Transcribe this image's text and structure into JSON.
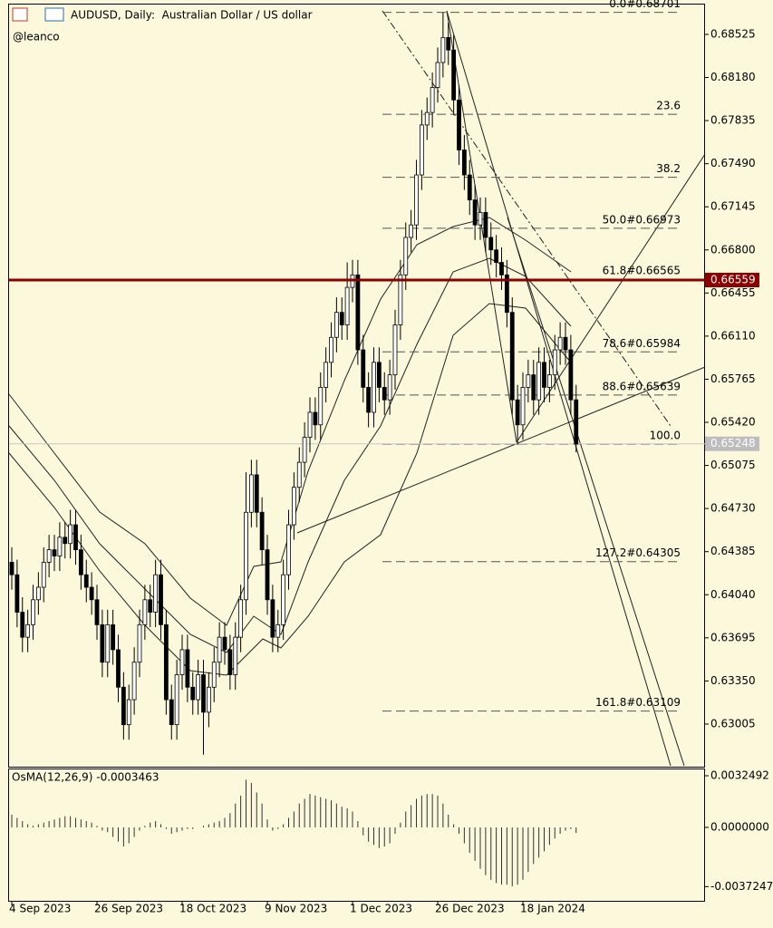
{
  "chart_data": {
    "type": "candlestick",
    "title": "AUDUSD, Daily:  Australian Dollar / US dollar",
    "subtitle": "@leanco",
    "bull_color": "#ffffff",
    "bear_color": "#000000",
    "categories": [
      "4 Sep 2023",
      null,
      null,
      null,
      null,
      null,
      null,
      null,
      null,
      null,
      null,
      null,
      null,
      null,
      null,
      null,
      "26 Sep 2023",
      null,
      null,
      null,
      null,
      null,
      null,
      null,
      null,
      null,
      null,
      null,
      null,
      null,
      null,
      null,
      "18 Oct 2023",
      null,
      null,
      null,
      null,
      null,
      null,
      null,
      null,
      null,
      null,
      null,
      null,
      null,
      null,
      null,
      "9 Nov 2023",
      null,
      null,
      null,
      null,
      null,
      null,
      null,
      null,
      null,
      null,
      null,
      null,
      null,
      null,
      null,
      "1 Dec 2023",
      null,
      null,
      null,
      null,
      null,
      null,
      null,
      null,
      null,
      null,
      null,
      null,
      null,
      null,
      null,
      "26 Dec 2023",
      null,
      null,
      null,
      null,
      null,
      null,
      null,
      null,
      null,
      null,
      null,
      null,
      null,
      null,
      null,
      "18 Jan 2024",
      null,
      null,
      null,
      null,
      null,
      null,
      null,
      null,
      null,
      null
    ],
    "candles": [
      [
        0.643,
        0.6442,
        0.6408,
        0.642
      ],
      [
        0.642,
        0.6432,
        0.6378,
        0.639
      ],
      [
        0.639,
        0.6402,
        0.6358,
        0.637
      ],
      [
        0.637,
        0.6392,
        0.6358,
        0.638
      ],
      [
        0.638,
        0.6412,
        0.6368,
        0.64
      ],
      [
        0.64,
        0.6422,
        0.6388,
        0.641
      ],
      [
        0.641,
        0.6442,
        0.6398,
        0.643
      ],
      [
        0.643,
        0.6452,
        0.6418,
        0.644
      ],
      [
        0.644,
        0.6452,
        0.6423,
        0.6435
      ],
      [
        0.6435,
        0.6462,
        0.6423,
        0.645
      ],
      [
        0.645,
        0.6462,
        0.6433,
        0.6445
      ],
      [
        0.6445,
        0.6472,
        0.6433,
        0.646
      ],
      [
        0.646,
        0.6472,
        0.6428,
        0.644
      ],
      [
        0.644,
        0.6452,
        0.6408,
        0.642
      ],
      [
        0.642,
        0.6432,
        0.6398,
        0.641
      ],
      [
        0.641,
        0.6422,
        0.6388,
        0.64
      ],
      [
        0.64,
        0.6412,
        0.6368,
        0.638
      ],
      [
        0.638,
        0.6392,
        0.6338,
        0.635
      ],
      [
        0.635,
        0.6392,
        0.6338,
        0.638
      ],
      [
        0.638,
        0.6392,
        0.6348,
        0.636
      ],
      [
        0.636,
        0.6372,
        0.6318,
        0.633
      ],
      [
        0.633,
        0.6342,
        0.6288,
        0.63
      ],
      [
        0.63,
        0.6332,
        0.6288,
        0.632
      ],
      [
        0.632,
        0.6362,
        0.6308,
        0.635
      ],
      [
        0.635,
        0.6392,
        0.6338,
        0.638
      ],
      [
        0.638,
        0.6412,
        0.6368,
        0.64
      ],
      [
        0.64,
        0.6412,
        0.6378,
        0.639
      ],
      [
        0.639,
        0.6432,
        0.6378,
        0.642
      ],
      [
        0.642,
        0.6432,
        0.6368,
        0.638
      ],
      [
        0.638,
        0.6392,
        0.6308,
        0.632
      ],
      [
        0.632,
        0.6332,
        0.6288,
        0.63
      ],
      [
        0.63,
        0.6352,
        0.6288,
        0.634
      ],
      [
        0.634,
        0.6372,
        0.6328,
        0.636
      ],
      [
        0.636,
        0.6372,
        0.6318,
        0.633
      ],
      [
        0.633,
        0.6342,
        0.6308,
        0.632
      ],
      [
        0.632,
        0.6352,
        0.6308,
        0.634
      ],
      [
        0.634,
        0.6352,
        0.6276,
        0.631
      ],
      [
        0.631,
        0.6342,
        0.6298,
        0.633
      ],
      [
        0.633,
        0.6362,
        0.6318,
        0.635
      ],
      [
        0.635,
        0.6382,
        0.6338,
        0.637
      ],
      [
        0.637,
        0.6382,
        0.6348,
        0.636
      ],
      [
        0.636,
        0.6372,
        0.6328,
        0.634
      ],
      [
        0.634,
        0.6382,
        0.6328,
        0.637
      ],
      [
        0.637,
        0.6412,
        0.6358,
        0.64
      ],
      [
        0.64,
        0.6502,
        0.6388,
        0.647
      ],
      [
        0.647,
        0.6512,
        0.6458,
        0.65
      ],
      [
        0.65,
        0.6512,
        0.6458,
        0.647
      ],
      [
        0.647,
        0.6482,
        0.6428,
        0.644
      ],
      [
        0.644,
        0.6452,
        0.6388,
        0.64
      ],
      [
        0.64,
        0.6412,
        0.6358,
        0.637
      ],
      [
        0.637,
        0.6392,
        0.6358,
        0.638
      ],
      [
        0.638,
        0.6432,
        0.6368,
        0.642
      ],
      [
        0.642,
        0.6472,
        0.6408,
        0.646
      ],
      [
        0.646,
        0.6502,
        0.6448,
        0.649
      ],
      [
        0.649,
        0.6522,
        0.6478,
        0.651
      ],
      [
        0.651,
        0.6542,
        0.6498,
        0.653
      ],
      [
        0.653,
        0.6562,
        0.6518,
        0.655
      ],
      [
        0.655,
        0.6562,
        0.6528,
        0.654
      ],
      [
        0.654,
        0.6582,
        0.6528,
        0.657
      ],
      [
        0.657,
        0.6602,
        0.6558,
        0.659
      ],
      [
        0.659,
        0.6622,
        0.6578,
        0.661
      ],
      [
        0.661,
        0.6642,
        0.6598,
        0.663
      ],
      [
        0.663,
        0.6642,
        0.6608,
        0.662
      ],
      [
        0.662,
        0.667,
        0.6608,
        0.665
      ],
      [
        0.665,
        0.6672,
        0.6638,
        0.666
      ],
      [
        0.666,
        0.6672,
        0.6588,
        0.66
      ],
      [
        0.66,
        0.6612,
        0.6558,
        0.657
      ],
      [
        0.657,
        0.6582,
        0.6538,
        0.655
      ],
      [
        0.655,
        0.6602,
        0.6538,
        0.659
      ],
      [
        0.659,
        0.6602,
        0.6558,
        0.657
      ],
      [
        0.657,
        0.6582,
        0.6548,
        0.656
      ],
      [
        0.656,
        0.6592,
        0.6548,
        0.658
      ],
      [
        0.658,
        0.6632,
        0.6568,
        0.662
      ],
      [
        0.662,
        0.6672,
        0.6608,
        0.666
      ],
      [
        0.666,
        0.6702,
        0.6648,
        0.669
      ],
      [
        0.669,
        0.6712,
        0.6678,
        0.67
      ],
      [
        0.67,
        0.6752,
        0.6688,
        0.674
      ],
      [
        0.674,
        0.6792,
        0.6728,
        0.678
      ],
      [
        0.678,
        0.6802,
        0.6768,
        0.679
      ],
      [
        0.679,
        0.6822,
        0.6778,
        0.681
      ],
      [
        0.681,
        0.6842,
        0.6798,
        0.683
      ],
      [
        0.683,
        0.687,
        0.6818,
        0.685
      ],
      [
        0.685,
        0.6862,
        0.6828,
        0.684
      ],
      [
        0.684,
        0.6852,
        0.6788,
        0.68
      ],
      [
        0.68,
        0.6812,
        0.6748,
        0.676
      ],
      [
        0.676,
        0.6772,
        0.6728,
        0.674
      ],
      [
        0.674,
        0.6752,
        0.6708,
        0.672
      ],
      [
        0.672,
        0.6732,
        0.6688,
        0.67
      ],
      [
        0.67,
        0.6722,
        0.6688,
        0.671
      ],
      [
        0.671,
        0.6722,
        0.6678,
        0.669
      ],
      [
        0.669,
        0.6702,
        0.6668,
        0.668
      ],
      [
        0.668,
        0.6692,
        0.6658,
        0.667
      ],
      [
        0.667,
        0.6682,
        0.6648,
        0.666
      ],
      [
        0.666,
        0.6672,
        0.6618,
        0.663
      ],
      [
        0.663,
        0.6642,
        0.6548,
        0.656
      ],
      [
        0.656,
        0.6572,
        0.6524,
        0.654
      ],
      [
        0.654,
        0.6582,
        0.6528,
        0.657
      ],
      [
        0.657,
        0.6592,
        0.6558,
        0.658
      ],
      [
        0.658,
        0.6592,
        0.6548,
        0.656
      ],
      [
        0.656,
        0.6602,
        0.6548,
        0.659
      ],
      [
        0.659,
        0.6602,
        0.6558,
        0.657
      ],
      [
        0.657,
        0.6592,
        0.6558,
        0.658
      ],
      [
        0.658,
        0.6612,
        0.6568,
        0.66
      ],
      [
        0.66,
        0.6622,
        0.6588,
        0.661
      ],
      [
        0.661,
        0.6622,
        0.6588,
        0.66
      ],
      [
        0.66,
        0.6612,
        0.6548,
        0.656
      ],
      [
        0.656,
        0.6572,
        0.6518,
        0.65248
      ]
    ],
    "ylim": [
      0.62671,
      0.68764
    ],
    "yticks": [
      0.68525,
      {
        "value": 0.6818,
        "label": "0.68180"
      },
      0.67835,
      {
        "value": 0.6749,
        "label": "0.67490"
      },
      0.67145,
      {
        "value": 0.668,
        "label": "0.66800"
      },
      0.66455,
      {
        "value": 0.6611,
        "label": "0.66110"
      },
      0.65765,
      {
        "value": 0.6542,
        "label": "0.65420"
      },
      0.65075,
      {
        "value": 0.6473,
        "label": "0.64730"
      },
      0.64385,
      {
        "value": 0.6404,
        "label": "0.64040"
      },
      0.63695,
      {
        "value": 0.6335,
        "label": "0.63350"
      },
      0.63005
    ],
    "price_line": 0.66559,
    "price_line_color": "#8b0000",
    "current_price": 0.65248,
    "fib_levels": [
      {
        "label": "0.0#0.68701",
        "value": 0.68701
      },
      {
        "label": "23.6",
        "value": 0.67885
      },
      {
        "label": "38.2",
        "value": 0.67381
      },
      {
        "label": "50.0#0.66973",
        "value": 0.66973
      },
      {
        "label": "61.8#0.66565",
        "value": 0.66565
      },
      {
        "label": "78.6#0.65984",
        "value": 0.65984
      },
      {
        "label": "88.6#0.65639",
        "value": 0.65639
      },
      {
        "label": "100.0",
        "value": 0.65245
      },
      {
        "label": "127.2#0.64305",
        "value": 0.64305
      },
      {
        "label": "161.8#0.63109",
        "value": 0.63109
      }
    ],
    "indicator": {
      "type": "bar",
      "name": "OsMA(12,26,9) -0.0003463",
      "color": "#333333",
      "values": [
        0.0008,
        0.0006,
        0.0004,
        0.0002,
        0.0001,
        0.0002,
        0.0003,
        0.0004,
        0.0005,
        0.0006,
        0.0007,
        0.0007,
        0.0006,
        0.0005,
        0.0004,
        0.0003,
        0.0001,
        -0.0002,
        -0.0003,
        -0.0006,
        -0.0009,
        -0.0012,
        -0.001,
        -0.0006,
        -0.0002,
        0.0001,
        0.0003,
        0.0004,
        0.0002,
        -0.0001,
        -0.0004,
        -0.0003,
        -0.0002,
        -0.0001,
        -0.0001,
        0.0,
        0.0001,
        0.0002,
        0.0003,
        0.0004,
        0.0006,
        0.0009,
        0.0015,
        0.002,
        0.003,
        0.0028,
        0.0022,
        0.0015,
        0.0005,
        -0.0002,
        -0.0001,
        0.0002,
        0.0006,
        0.001,
        0.0015,
        0.0018,
        0.0021,
        0.002,
        0.0019,
        0.0018,
        0.0017,
        0.0015,
        0.0013,
        0.0012,
        0.001,
        0.0004,
        -0.0005,
        -0.0009,
        -0.0011,
        -0.0013,
        -0.0012,
        -0.001,
        -0.0004,
        0.0003,
        0.001,
        0.0014,
        0.0018,
        0.002,
        0.0021,
        0.0021,
        0.002,
        0.0015,
        0.0008,
        0.0002,
        -0.0004,
        -0.001,
        -0.0016,
        -0.0021,
        -0.0026,
        -0.003,
        -0.0033,
        -0.0035,
        -0.0036,
        -0.0036,
        -0.0037,
        -0.0036,
        -0.0033,
        -0.0028,
        -0.0023,
        -0.0019,
        -0.0015,
        -0.0011,
        -0.0007,
        -0.0004,
        -0.0002,
        -0.0001,
        -0.0003463
      ],
      "y2lim": [
        -0.0046743,
        0.0037052
      ],
      "y2ticks": [
        0.0032492,
        {
          "value": 0,
          "label": "0.0000000"
        },
        -0.0037247
      ]
    }
  }
}
